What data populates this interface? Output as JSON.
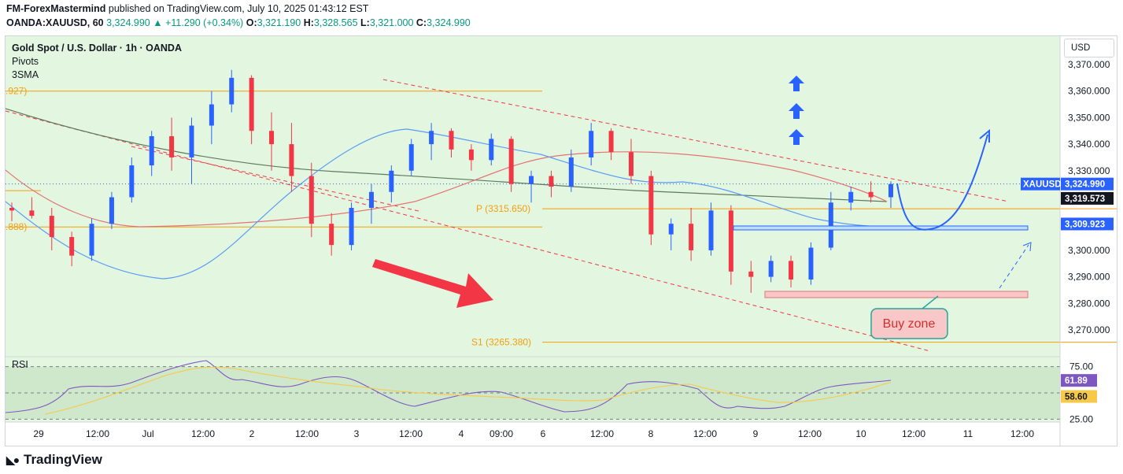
{
  "header": {
    "publisher": "FM-ForexMastermind",
    "published_text": "published on TradingView.com, July 10, 2025 01:43:12 EST",
    "symbol": "OANDA:XAUUSD, 60",
    "last": "3,324.990",
    "change": "+11.290 (+0.34%)",
    "o_label": "O:",
    "o": "3,321.190",
    "h_label": "H:",
    "h": "3,328.565",
    "l_label": "L:",
    "l": "3,321.000",
    "c_label": "C:",
    "c": "3,324.990"
  },
  "legend": {
    "title": "Gold Spot / U.S. Dollar · 1h · OANDA",
    "ind1": "Pivots",
    "ind2": "3SMA"
  },
  "currency": "USD",
  "rsi_label": "RSI",
  "branding": "TradingView",
  "colors": {
    "up": "#2962ff",
    "down": "#f23645",
    "bg_green": "#e3f7e0",
    "pivot": "#f59d0f",
    "sma_fast": "#5b9cf6",
    "sma_mid": "#e57373",
    "sma_slow": "#5d7a5d",
    "rsi_line": "#7e57c2",
    "rsi_ma": "#f7c948"
  },
  "chart_data": {
    "type": "candlestick",
    "ylim": [
      3255,
      3375
    ],
    "y_ticks": [
      "3,370.000",
      "3,360.000",
      "3,350.000",
      "3,340.000",
      "3,330.000",
      "3,320.000",
      "3,310.000",
      "3,300.000",
      "3,290.000",
      "3,280.000",
      "3,270.000"
    ],
    "y_tick_values": [
      3370,
      3360,
      3350,
      3340,
      3330,
      3320,
      3310,
      3300,
      3290,
      3280,
      3270
    ],
    "x_ticks": [
      "29",
      "12:00",
      "Jul",
      "12:00",
      "2",
      "12:00",
      "3",
      "12:00",
      "4",
      "09:00",
      "6",
      "12:00",
      "8",
      "12:00",
      "9",
      "12:00",
      "10",
      "12:00",
      "11",
      "12:00"
    ],
    "price_labels": [
      {
        "label": "XAUUSD",
        "value": "3,324.990",
        "y": 3324.99
      },
      {
        "label": "",
        "value": "3,319.573",
        "y": 3319.573
      },
      {
        "label": "",
        "value": "3,309.923",
        "y": 3309.923
      }
    ],
    "pivot_levels": [
      {
        "text": ".927)",
        "y": 3360.0
      },
      {
        "text": ".888)",
        "y": 3308.8
      },
      {
        "text": "P (3315.650)",
        "y": 3315.65
      },
      {
        "text": "S1 (3265.380)",
        "y": 3265.38
      }
    ],
    "annotations": {
      "buy_zone": "Buy zone"
    },
    "candles": [
      [
        3316,
        3318,
        3311,
        3315
      ],
      [
        3315,
        3320,
        3312,
        3313
      ],
      [
        3313,
        3316,
        3300,
        3305
      ],
      [
        3305,
        3307,
        3294,
        3298
      ],
      [
        3298,
        3312,
        3296,
        3310
      ],
      [
        3310,
        3322,
        3308,
        3320
      ],
      [
        3320,
        3335,
        3318,
        3332
      ],
      [
        3332,
        3345,
        3328,
        3343
      ],
      [
        3343,
        3350,
        3330,
        3335
      ],
      [
        3335,
        3350,
        3325,
        3347
      ],
      [
        3347,
        3360,
        3340,
        3355
      ],
      [
        3355,
        3368,
        3352,
        3365
      ],
      [
        3365,
        3366,
        3340,
        3345
      ],
      [
        3345,
        3352,
        3330,
        3340
      ],
      [
        3340,
        3348,
        3322,
        3328
      ],
      [
        3328,
        3333,
        3305,
        3310
      ],
      [
        3310,
        3314,
        3298,
        3302
      ],
      [
        3302,
        3318,
        3300,
        3316
      ],
      [
        3316,
        3325,
        3310,
        3322
      ],
      [
        3322,
        3332,
        3318,
        3330
      ],
      [
        3330,
        3342,
        3328,
        3340
      ],
      [
        3340,
        3348,
        3334,
        3345
      ],
      [
        3345,
        3346,
        3335,
        3338
      ],
      [
        3338,
        3340,
        3330,
        3334
      ],
      [
        3334,
        3344,
        3332,
        3342
      ],
      [
        3342,
        3343,
        3322,
        3325
      ],
      [
        3325,
        3330,
        3318,
        3328
      ],
      [
        3328,
        3330,
        3320,
        3324
      ],
      [
        3324,
        3338,
        3322,
        3335
      ],
      [
        3335,
        3348,
        3332,
        3345
      ],
      [
        3345,
        3346,
        3334,
        3337
      ],
      [
        3337,
        3342,
        3325,
        3328
      ],
      [
        3328,
        3330,
        3302,
        3306
      ],
      [
        3306,
        3312,
        3300,
        3310
      ],
      [
        3310,
        3316,
        3296,
        3300
      ],
      [
        3300,
        3318,
        3298,
        3315
      ],
      [
        3315,
        3317,
        3287,
        3292
      ],
      [
        3292,
        3296,
        3284,
        3290
      ],
      [
        3290,
        3298,
        3288,
        3296
      ],
      [
        3296,
        3298,
        3286,
        3289
      ],
      [
        3289,
        3303,
        3287,
        3301
      ],
      [
        3301,
        3322,
        3300,
        3318
      ],
      [
        3318,
        3324,
        3315,
        3322
      ],
      [
        3322,
        3326,
        3318,
        3320
      ],
      [
        3320,
        3326,
        3316,
        3325
      ]
    ],
    "rsi": {
      "ylim": [
        20,
        80
      ],
      "levels": [
        75,
        50,
        25
      ],
      "value": "61.89",
      "ma_value": "58.60",
      "ticks": [
        "75.00",
        "25.00"
      ]
    }
  }
}
